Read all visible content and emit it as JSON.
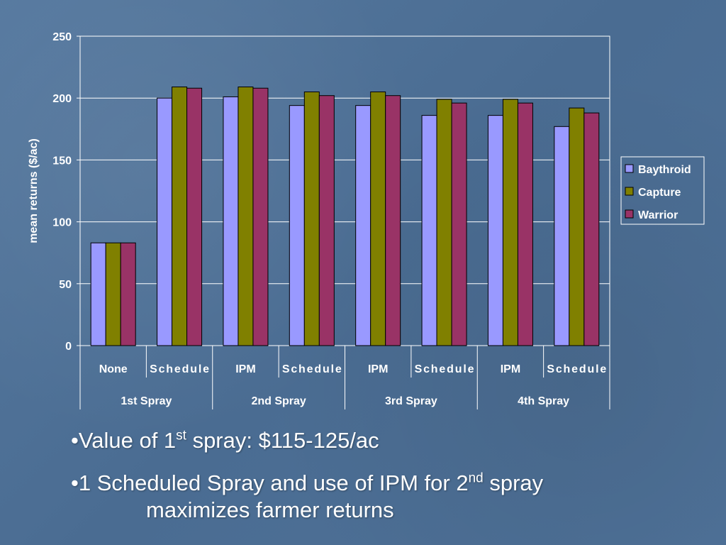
{
  "chart_data": {
    "type": "bar",
    "categories": [
      "None",
      "Schedule",
      "IPM",
      "Schedule",
      "IPM",
      "Schedule",
      "IPM",
      "Schedule"
    ],
    "groups": [
      {
        "label": "1st Spray",
        "span": 2
      },
      {
        "label": "2nd Spray",
        "span": 2
      },
      {
        "label": "3rd Spray",
        "span": 2
      },
      {
        "label": "4th Spray",
        "span": 2
      }
    ],
    "series": [
      {
        "name": "Baythroid",
        "color": "#9999ff",
        "values": [
          83,
          200,
          201,
          194,
          194,
          186,
          186,
          177
        ]
      },
      {
        "name": "Capture",
        "color": "#808000",
        "values": [
          83,
          209,
          209,
          205,
          205,
          199,
          199,
          192
        ]
      },
      {
        "name": "Warrior",
        "color": "#993366",
        "values": [
          83,
          208,
          208,
          202,
          202,
          196,
          196,
          188
        ]
      }
    ],
    "ylabel": "mean returns ($/ac)",
    "ylim": [
      0,
      250
    ],
    "yticks": [
      0,
      50,
      100,
      150,
      200,
      250
    ],
    "grid": true,
    "legend": "right"
  },
  "bullets": {
    "b1": {
      "pre": "•Value of 1",
      "sup": "st",
      "post": " spray: $115-125/ac"
    },
    "b2": {
      "pre": "•1 Scheduled Spray and use of IPM for 2",
      "sup": "nd",
      "post": " spray",
      "line2": "maximizes farmer returns"
    }
  }
}
